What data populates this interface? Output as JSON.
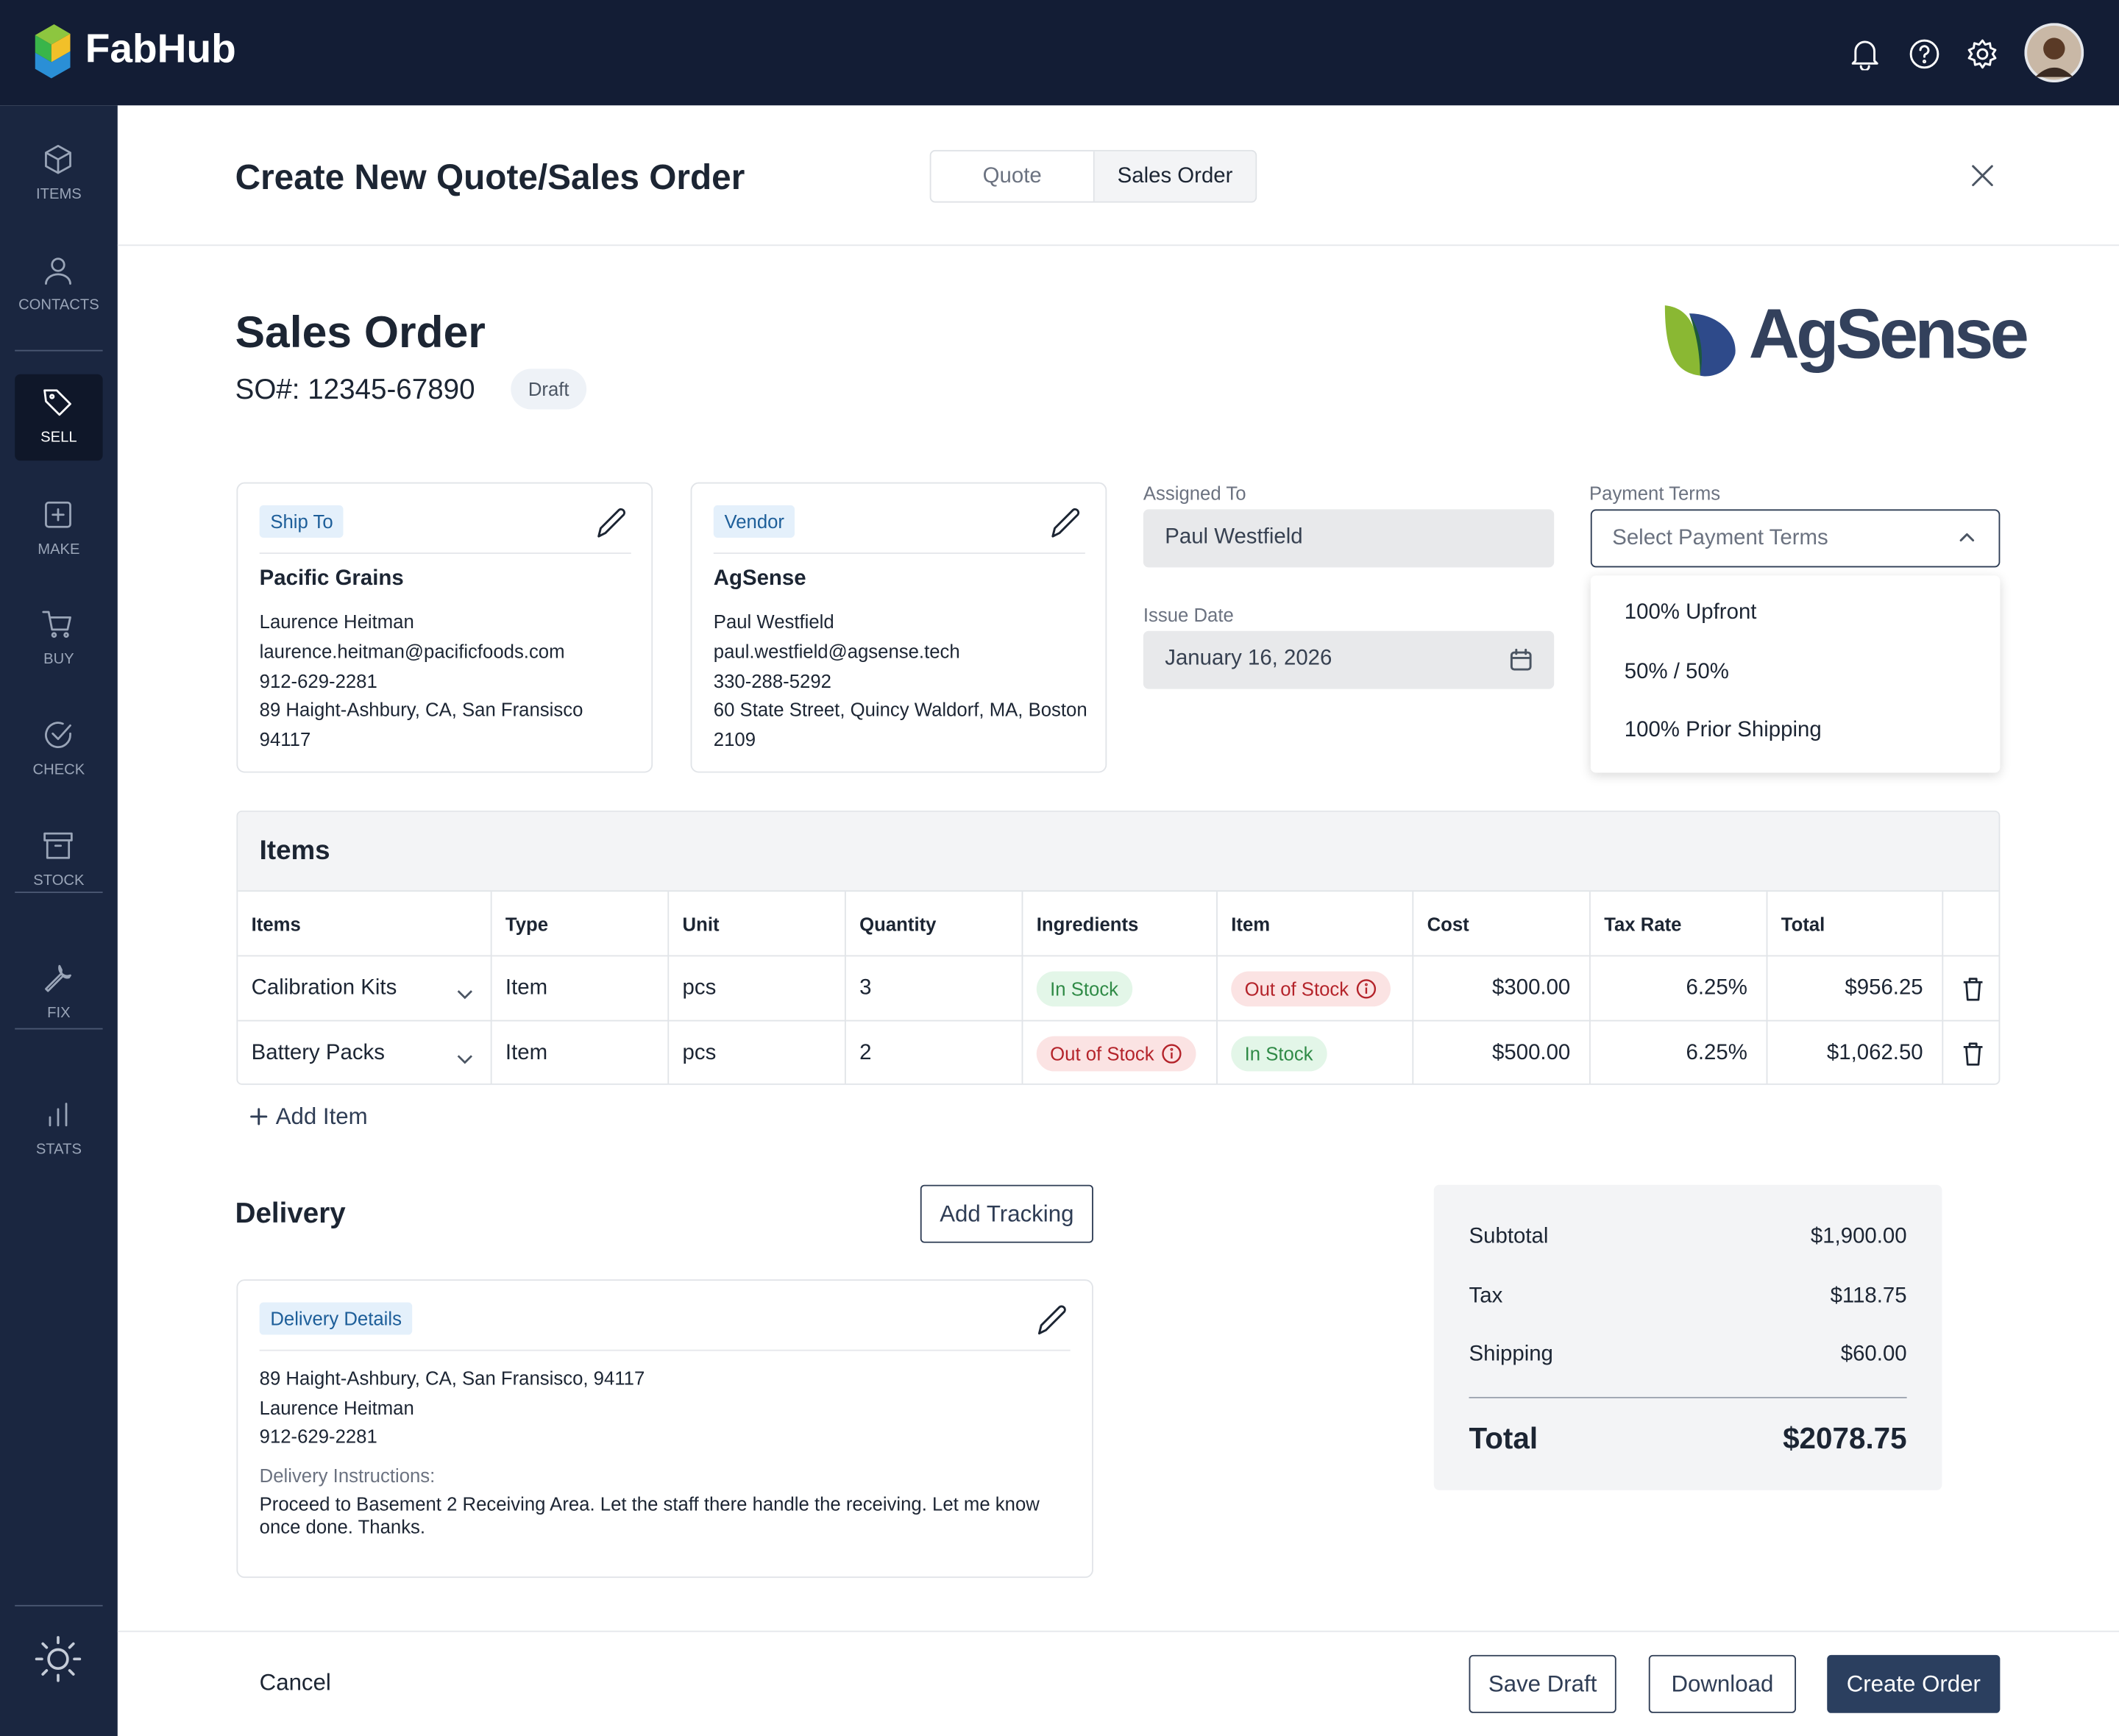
{
  "header": {
    "brand": "FabHub"
  },
  "sidebar": {
    "items": [
      "ITEMS",
      "CONTACTS",
      "SELL",
      "MAKE",
      "BUY",
      "CHECK",
      "STOCK",
      "FIX",
      "STATS"
    ]
  },
  "modal": {
    "title": "Create New Quote/Sales Order",
    "tabs": [
      "Quote",
      "Sales Order"
    ]
  },
  "order": {
    "title": "Sales Order",
    "number": "SO#: 12345-67890",
    "status": "Draft",
    "vendor_logo": "AgSense"
  },
  "ship_to": {
    "label": "Ship To",
    "name": "Pacific Grains",
    "lines": [
      "Laurence Heitman",
      "laurence.heitman@pacificfoods.com",
      "912-629-2281",
      "89 Haight-Ashbury, CA, San Fransisco",
      "94117"
    ]
  },
  "vendor": {
    "label": "Vendor",
    "name": "AgSense",
    "lines": [
      "Paul Westfield",
      "paul.westfield@agsense.tech",
      "330-288-5292",
      "60 State Street, Quincy Waldorf, MA, Boston",
      "2109"
    ]
  },
  "assigned_to": {
    "label": "Assigned To",
    "value": "Paul Westfield"
  },
  "issue_date": {
    "label": "Issue Date",
    "value": "January 16, 2026"
  },
  "payment_terms": {
    "label": "Payment Terms",
    "placeholder": "Select Payment Terms",
    "options": [
      "100% Upfront",
      "50% / 50%",
      "100% Prior Shipping"
    ]
  },
  "items": {
    "title": "Items",
    "columns": [
      "Items",
      "Type",
      "Unit",
      "Quantity",
      "Ingredients",
      "Item",
      "Cost",
      "Tax Rate",
      "Total"
    ],
    "rows": [
      [
        "Calibration Kits",
        "Item",
        "pcs",
        "3",
        {
          "text": "In Stock",
          "color": "green"
        },
        {
          "text": "Out of Stock",
          "color": "red"
        },
        "$300.00",
        "6.25%",
        "$956.25"
      ],
      [
        "Battery Packs",
        "Item",
        "pcs",
        "2",
        {
          "text": "Out of Stock",
          "color": "red"
        },
        {
          "text": "In Stock",
          "color": "green"
        },
        "$500.00",
        "6.25%",
        "$1,062.50"
      ]
    ],
    "add": "Add Item"
  },
  "delivery": {
    "title": "Delivery",
    "button": "Add Tracking",
    "label": "Delivery Details",
    "lines": [
      "89 Haight-Ashbury, CA, San Fransisco, 94117",
      "Laurence Heitman",
      "912-629-2281"
    ],
    "instructions_label": "Delivery Instructions:",
    "instructions": "Proceed to Basement 2 Receiving Area. Let the staff there handle the receiving. Let me know once done. Thanks."
  },
  "summary": {
    "rows": [
      [
        "Subtotal",
        "$1,900.00"
      ],
      [
        "Tax",
        "$118.75"
      ],
      [
        "Shipping",
        "$60.00"
      ]
    ],
    "total_label": "Total",
    "total": "$2078.75"
  },
  "footer": {
    "cancel": "Cancel",
    "buttons": [
      "Save Draft",
      "Download",
      "Create Order"
    ]
  }
}
